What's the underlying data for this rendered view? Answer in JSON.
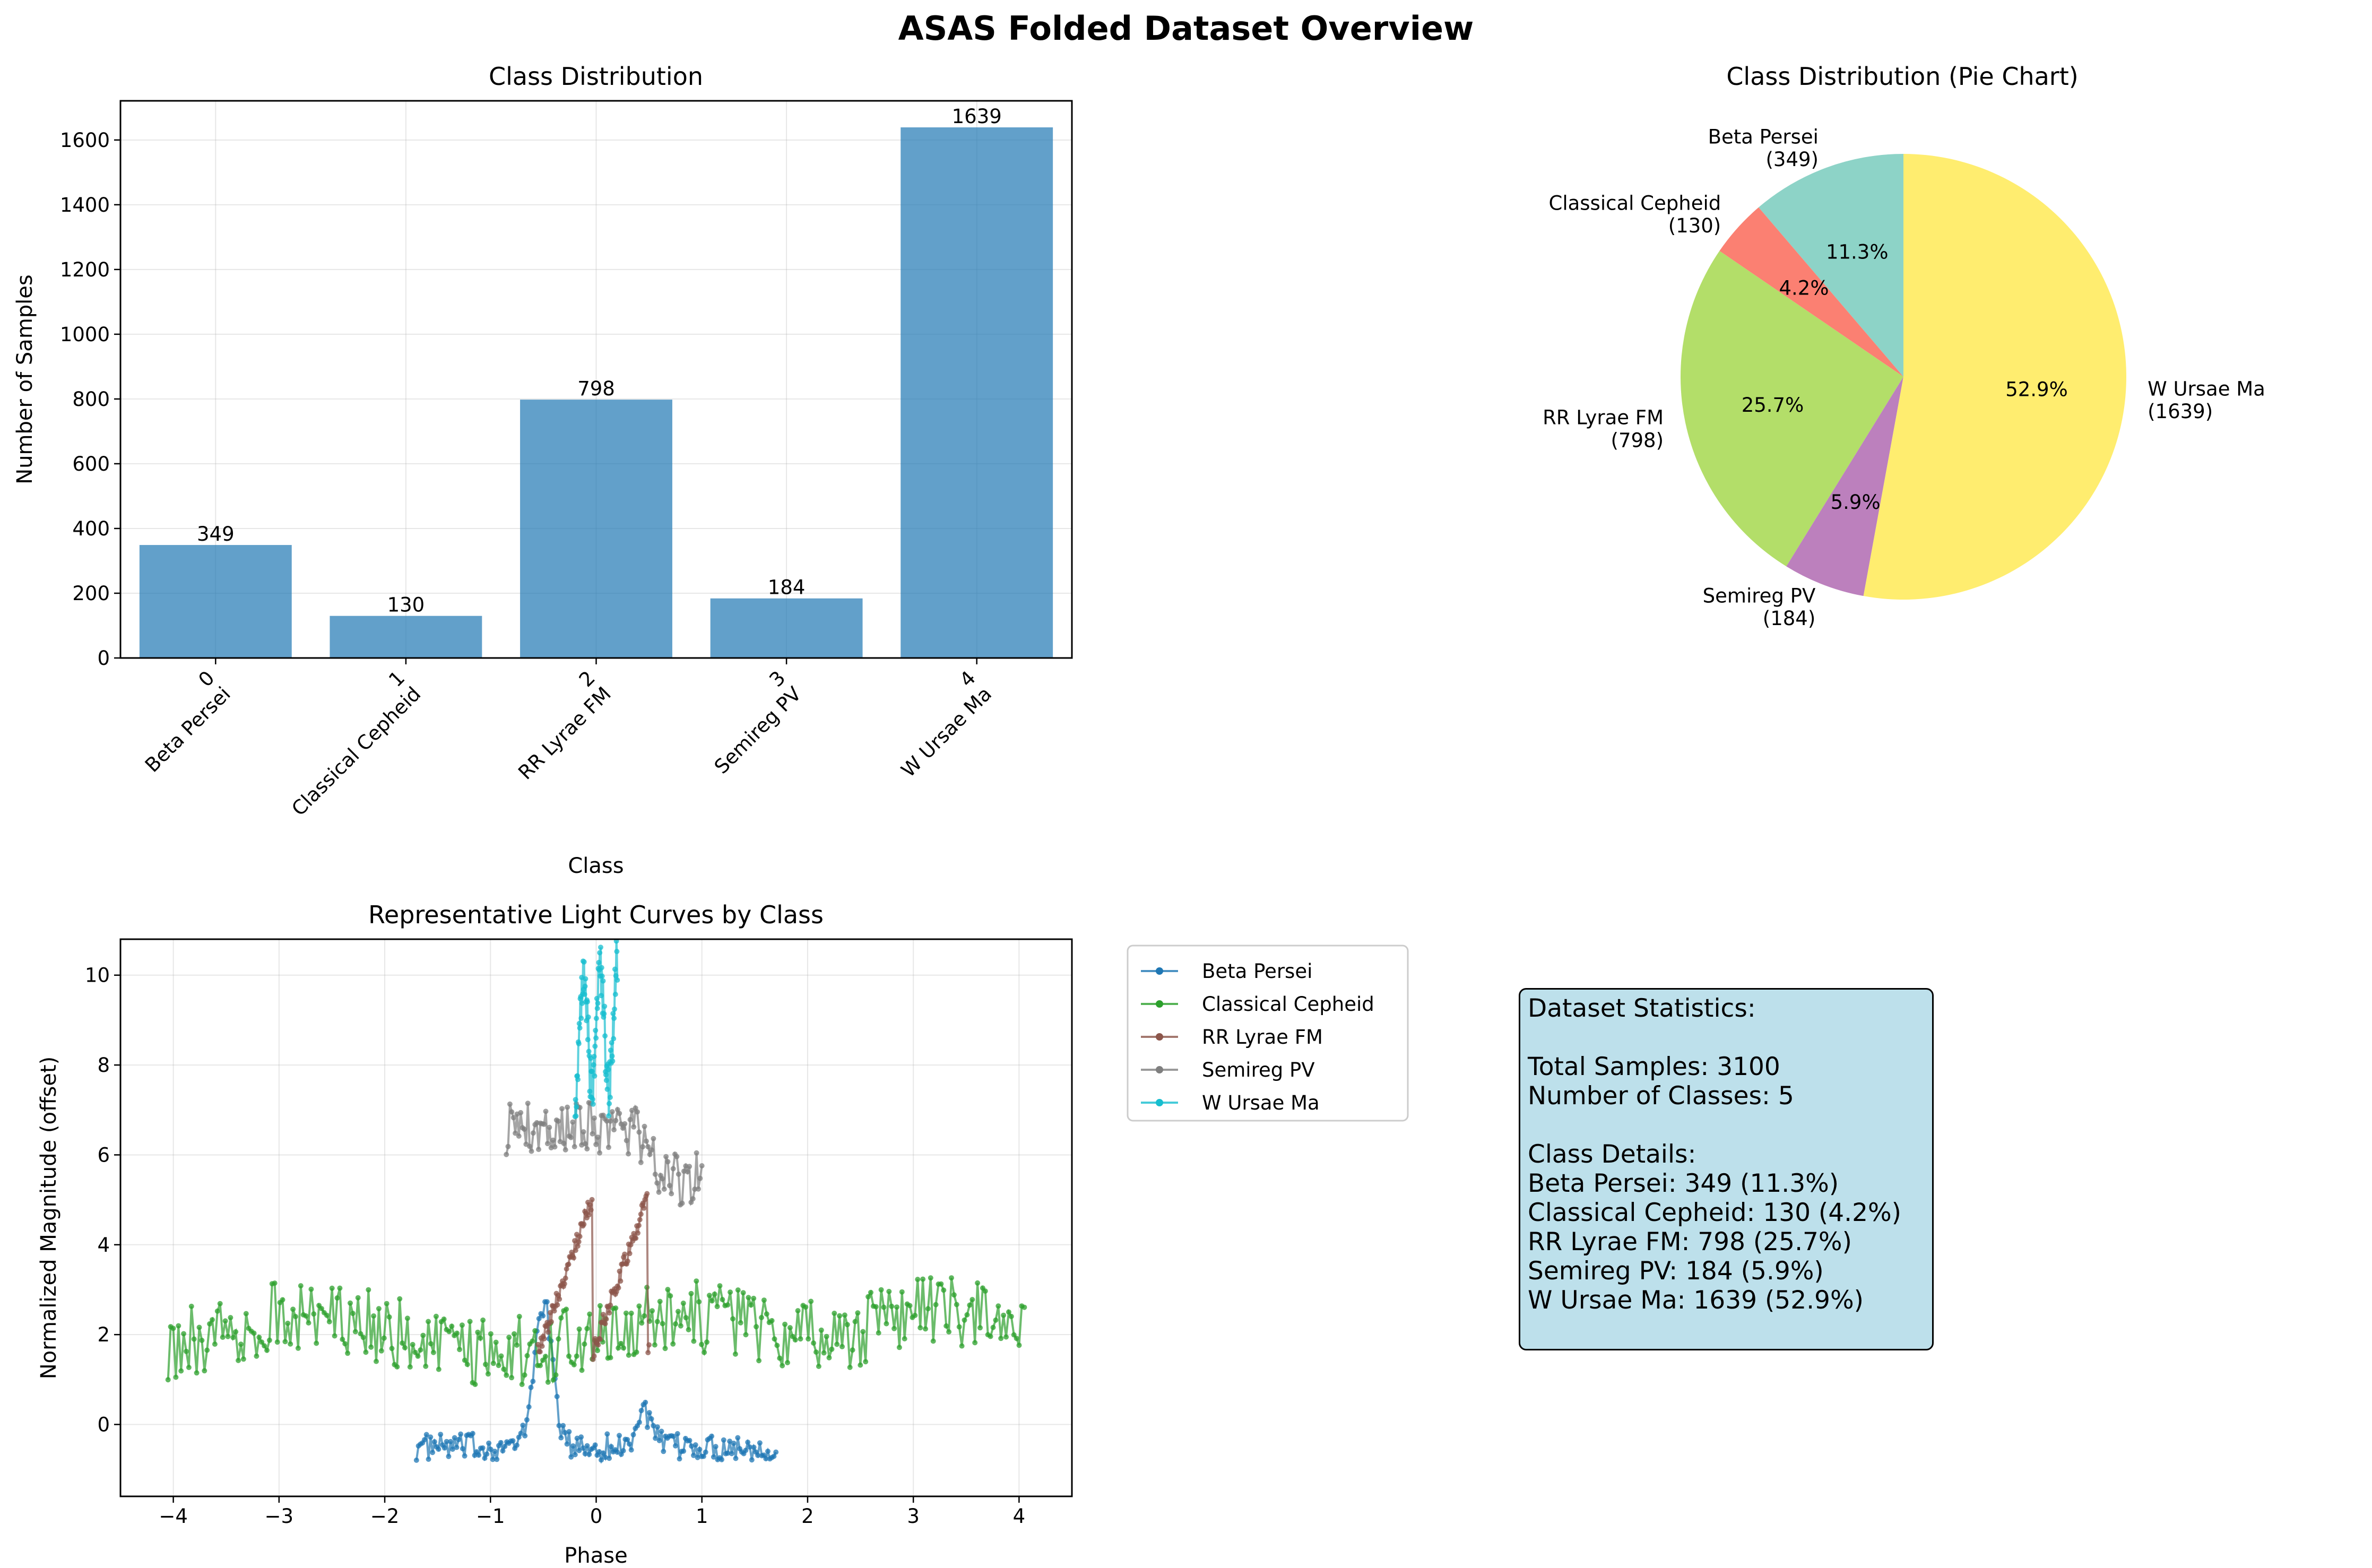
{
  "figure_title": "ASAS Folded Dataset Overview",
  "colors": {
    "bar": "#1f77b4",
    "pie": [
      "#8dd3c7",
      "#fb8072",
      "#b3de69",
      "#bc80bd",
      "#ffed6f"
    ],
    "lines": [
      "#1f77b4",
      "#2ca02c",
      "#8c564b",
      "#7f7f7f",
      "#17becf"
    ],
    "stats_box": "#add8e6"
  },
  "chart_data": [
    {
      "type": "bar",
      "title": "Class Distribution",
      "xlabel": "Class",
      "ylabel": "Number of Samples",
      "categories": [
        "0\nBeta Persei",
        "1\nClassical Cepheid",
        "2\nRR Lyrae FM",
        "3\nSemireg PV",
        "4\nW Ursae Ma"
      ],
      "values": [
        349,
        130,
        798,
        184,
        1639
      ],
      "ylim": [
        0,
        1721
      ],
      "yticks": [
        0,
        200,
        400,
        600,
        800,
        1000,
        1200,
        1400,
        1600
      ],
      "grid": true
    },
    {
      "type": "pie",
      "title": "Class Distribution (Pie Chart)",
      "labels": [
        "Beta Persei\n(349)",
        "Classical Cepheid\n(130)",
        "RR Lyrae FM\n(798)",
        "Semireg PV\n(184)",
        "W Ursae Ma\n(1639)"
      ],
      "values": [
        349,
        130,
        798,
        184,
        1639
      ],
      "percent_labels": [
        "11.3%",
        "4.2%",
        "25.7%",
        "5.9%",
        "52.9%"
      ],
      "start_angle": 90
    },
    {
      "type": "line",
      "title": "Representative Light Curves by Class",
      "xlabel": "Phase",
      "ylabel": "Normalized Magnitude (offset)",
      "xlim": [
        -4.5,
        4.5
      ],
      "ylim": [
        -1.6,
        10.8
      ],
      "xticks": [
        -4,
        -3,
        -2,
        -1,
        0,
        1,
        2,
        3,
        4
      ],
      "yticks": [
        0,
        2,
        4,
        6,
        8,
        10
      ],
      "grid": true,
      "legend": "outside upper right",
      "series": [
        {
          "name": "Beta Persei",
          "x_range": [
            -1.7,
            1.7
          ],
          "baseline": -0.5,
          "noise": 0.3,
          "features": "eclipse peaks near phase -0.5 and 0.45"
        },
        {
          "name": "Classical Cepheid",
          "x_range": [
            -4.05,
            4.05
          ],
          "baseline": 2.0,
          "noise": 0.8,
          "features": "broad scatter, higher values near phase 3"
        },
        {
          "name": "RR Lyrae FM",
          "x_range": [
            -0.55,
            0.5
          ],
          "baseline": 1.5,
          "noise": 0.2,
          "features": "two rising branches up to about 5.2"
        },
        {
          "name": "Semireg PV",
          "x_range": [
            -0.85,
            1.0
          ],
          "baseline": 6.0,
          "noise": 0.6,
          "features": "values between about 4 and 7.5"
        },
        {
          "name": "W Ursae Ma",
          "x_range": [
            -0.2,
            0.2
          ],
          "baseline": 8.0,
          "noise": 0.6,
          "features": "values between about 6.4 and 10.2"
        }
      ]
    }
  ],
  "stats": {
    "heading": "Dataset Statistics:",
    "total": "Total Samples: 3100",
    "num_classes": "Number of Classes: 5",
    "details_heading": "Class Details:",
    "lines": [
      "Beta Persei: 349 (11.3%)",
      "Classical Cepheid: 130 (4.2%)",
      "RR Lyrae FM: 798 (25.7%)",
      "Semireg PV: 184 (5.9%)",
      "W Ursae Ma: 1639 (52.9%)"
    ]
  }
}
